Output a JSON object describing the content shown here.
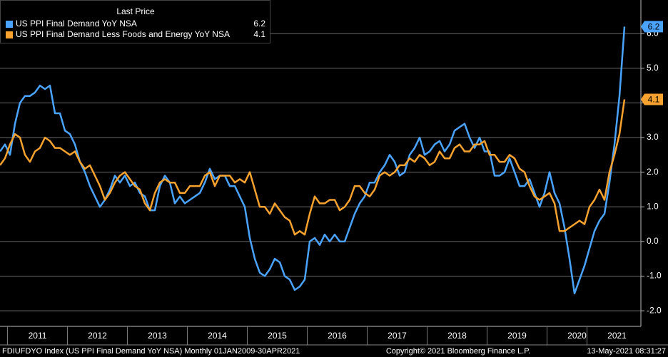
{
  "chart_data": {
    "type": "line",
    "legend_header": "Last Price",
    "categories": [
      null,
      null,
      null,
      null,
      null,
      null,
      null,
      null,
      "2011",
      null,
      null,
      null,
      null,
      null,
      null,
      null,
      null,
      null,
      null,
      null,
      "2012",
      null,
      null,
      null,
      null,
      null,
      null,
      null,
      null,
      null,
      null,
      null,
      "2013",
      null,
      null,
      null,
      null,
      null,
      null,
      null,
      null,
      null,
      null,
      null,
      "2014",
      null,
      null,
      null,
      null,
      null,
      null,
      null,
      null,
      null,
      null,
      null,
      "2015",
      null,
      null,
      null,
      null,
      null,
      null,
      null,
      null,
      null,
      null,
      null,
      "2016",
      null,
      null,
      null,
      null,
      null,
      null,
      null,
      null,
      null,
      null,
      null,
      "2017",
      null,
      null,
      null,
      null,
      null,
      null,
      null,
      null,
      null,
      null,
      null,
      "2018",
      null,
      null,
      null,
      null,
      null,
      null,
      null,
      null,
      null,
      null,
      null,
      "2019",
      null,
      null,
      null,
      null,
      null,
      null,
      null,
      null,
      null,
      null,
      null,
      "2020",
      null,
      null,
      null,
      null,
      null,
      null,
      null,
      "2021",
      null
    ],
    "series": [
      {
        "name": "US PPI Final Demand YoY NSA",
        "color": "#4aa3ff",
        "values": [
          2.6,
          2.8,
          2.5,
          3.4,
          4.0,
          4.2,
          4.2,
          4.3,
          4.5,
          4.4,
          4.5,
          3.7,
          3.7,
          3.2,
          3.1,
          2.8,
          2.3,
          2.0,
          1.6,
          1.3,
          1.0,
          1.2,
          1.5,
          1.9,
          1.7,
          1.9,
          1.6,
          1.7,
          1.4,
          1.3,
          0.9,
          0.9,
          1.6,
          1.9,
          1.7,
          1.1,
          1.3,
          1.1,
          1.2,
          1.3,
          1.4,
          1.7,
          2.1,
          1.8,
          1.9,
          1.9,
          1.6,
          1.6,
          1.3,
          1.0,
          0.1,
          -0.5,
          -0.9,
          -1.0,
          -0.8,
          -0.5,
          -0.6,
          -1.0,
          -1.1,
          -1.4,
          -1.3,
          -1.1,
          0.0,
          0.1,
          -0.1,
          0.2,
          0.0,
          0.2,
          0.0,
          0.0,
          0.4,
          0.8,
          1.1,
          1.3,
          1.7,
          1.7,
          2.0,
          2.2,
          2.5,
          2.3,
          1.9,
          2.0,
          2.5,
          2.7,
          3.0,
          2.5,
          2.6,
          2.8,
          2.9,
          2.6,
          2.8,
          3.2,
          3.3,
          3.4,
          3.0,
          2.7,
          3.0,
          2.6,
          2.6,
          1.9,
          1.9,
          2.0,
          2.4,
          2.0,
          1.6,
          1.6,
          1.8,
          1.4,
          1.0,
          1.4,
          2.0,
          1.4,
          1.1,
          0.4,
          -0.5,
          -1.5,
          -1.1,
          -0.7,
          -0.2,
          0.3,
          0.6,
          0.8,
          1.7,
          2.8,
          4.2,
          6.2
        ]
      },
      {
        "name": "US PPI Final Demand Less Foods and Energy YoY NSA",
        "color": "#f7a22e",
        "values": [
          2.2,
          2.4,
          2.8,
          3.1,
          3.0,
          2.5,
          2.3,
          2.6,
          2.7,
          3.0,
          2.9,
          2.7,
          2.7,
          2.6,
          2.5,
          2.6,
          2.3,
          2.1,
          2.2,
          1.9,
          1.6,
          1.2,
          1.4,
          1.7,
          1.9,
          2.0,
          1.8,
          1.6,
          1.5,
          1.1,
          0.9,
          1.4,
          1.7,
          1.8,
          1.7,
          1.7,
          1.4,
          1.4,
          1.6,
          1.6,
          1.6,
          1.9,
          2.0,
          1.6,
          1.9,
          1.9,
          1.9,
          1.7,
          1.8,
          1.7,
          2.0,
          1.5,
          1.0,
          1.0,
          0.8,
          1.1,
          0.9,
          0.7,
          0.6,
          0.2,
          0.3,
          0.2,
          0.8,
          1.3,
          1.1,
          1.1,
          1.2,
          1.2,
          0.9,
          1.0,
          1.2,
          1.6,
          1.6,
          1.4,
          1.3,
          1.5,
          1.9,
          2.0,
          1.9,
          2.0,
          2.2,
          2.2,
          2.4,
          2.3,
          2.5,
          2.4,
          2.2,
          2.3,
          2.6,
          2.4,
          2.4,
          2.7,
          2.8,
          2.6,
          2.6,
          2.8,
          2.8,
          2.9,
          2.5,
          2.5,
          2.3,
          2.3,
          2.5,
          2.4,
          2.1,
          2.0,
          1.6,
          1.3,
          1.2,
          1.3,
          1.4,
          1.1,
          0.3,
          0.3,
          0.4,
          0.5,
          0.6,
          0.5,
          1.0,
          1.2,
          1.5,
          1.2,
          2.0,
          2.5,
          3.1,
          4.1
        ]
      }
    ],
    "ylim": [
      -2.45,
      6.97
    ],
    "yticks": [
      {
        "value": -2,
        "label": "-2.0"
      },
      {
        "value": -1,
        "label": "-1.0"
      },
      {
        "value": 0,
        "label": "0.0"
      },
      {
        "value": 1,
        "label": "1.0"
      },
      {
        "value": 2,
        "label": "2.0"
      },
      {
        "value": 3,
        "label": "3.0"
      },
      {
        "value": 4,
        "label": "4.0"
      },
      {
        "value": 5,
        "label": "5.0"
      },
      {
        "value": 6,
        "label": "6.0"
      }
    ],
    "grid": true,
    "legend_position": "upper left",
    "footer": {
      "left": "FDIUFDYO Index (US PPI Final Demand YoY NSA)  Monthly 01JAN2009-30APR2021",
      "center": "Copyright© 2021 Bloomberg Finance L.P.",
      "right": "13-May-2021 08:31:27"
    }
  }
}
